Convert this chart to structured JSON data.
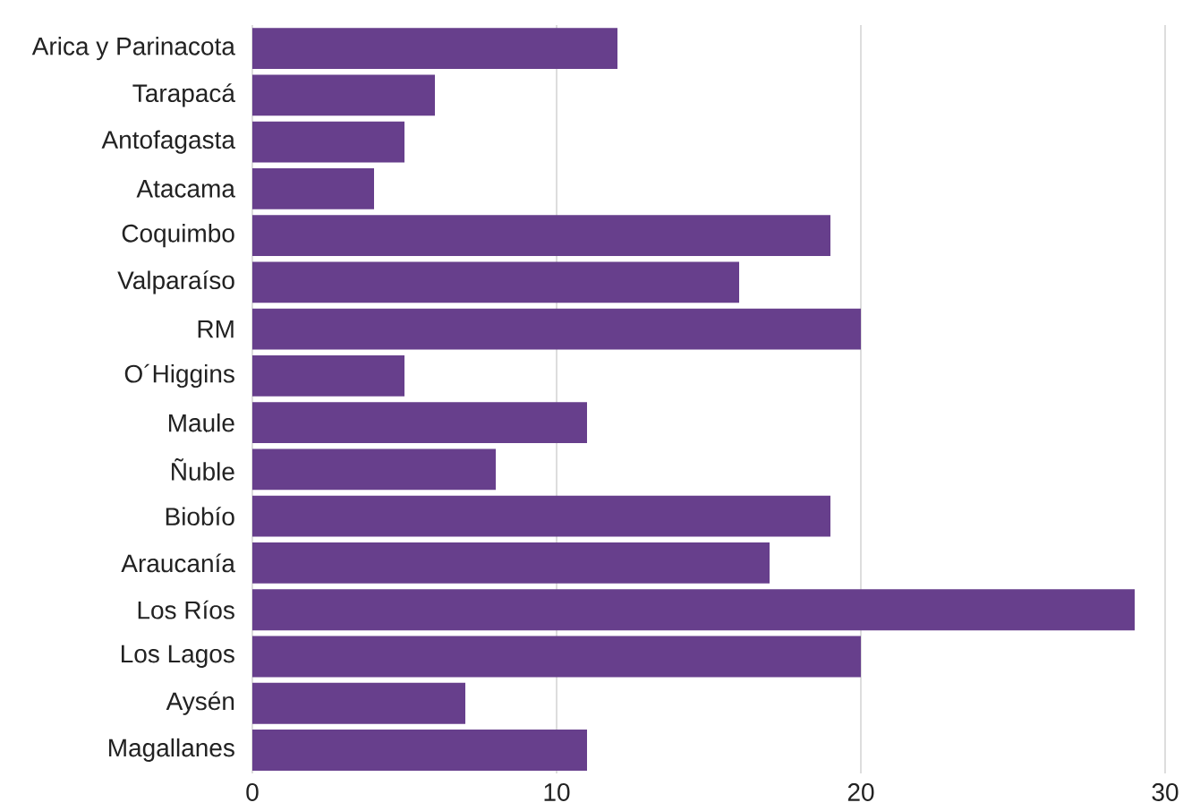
{
  "chart_data": {
    "type": "bar",
    "orientation": "horizontal",
    "categories": [
      "Arica y Parinacota",
      "Tarapacá",
      "Antofagasta",
      "Atacama",
      "Coquimbo",
      "Valparaíso",
      "RM",
      "O´Higgins",
      "Maule",
      "Ñuble",
      "Biobío",
      "Araucanía",
      "Los Ríos",
      "Los Lagos",
      "Aysén",
      "Magallanes"
    ],
    "values": [
      12,
      6,
      5,
      4,
      19,
      16,
      20,
      5,
      11,
      8,
      19,
      17,
      29,
      20,
      7,
      11
    ],
    "color": "#673f8c",
    "xlim": [
      0,
      30
    ],
    "xticks": [
      0,
      10,
      20,
      30
    ],
    "grid": "x"
  }
}
